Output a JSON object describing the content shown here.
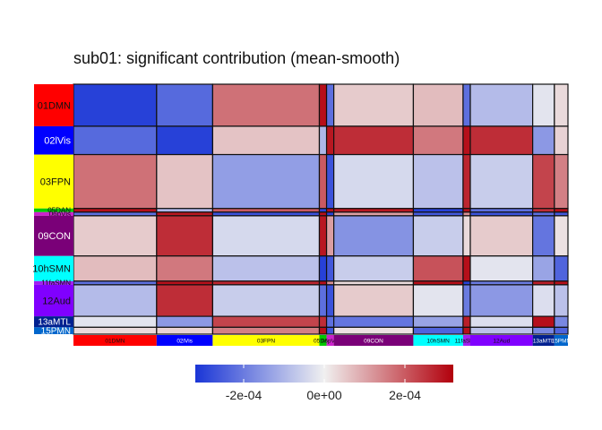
{
  "chart_data": {
    "type": "heatmap",
    "title": "sub01: significant contribution (mean-smooth)",
    "networks": [
      {
        "label": "01DMN",
        "color": "#ff0000",
        "text": "#111111",
        "size": 9.2
      },
      {
        "label": "02lVis",
        "color": "#0000ff",
        "text": "#ffffff",
        "size": 6.2
      },
      {
        "label": "03FPN",
        "color": "#ffff00",
        "text": "#111111",
        "size": 11.8
      },
      {
        "label": "05DAN",
        "color": "#00c800",
        "text": "#111111",
        "size": 0.8
      },
      {
        "label": "06pVis",
        "color": "#cc22cc",
        "text": "#111111",
        "size": 0.8
      },
      {
        "label": "09CON",
        "color": "#7a0078",
        "text": "#ffffff",
        "size": 8.8
      },
      {
        "label": "10hSMN",
        "color": "#00ffff",
        "text": "#111111",
        "size": 5.5
      },
      {
        "label": "11faSMN",
        "color": "#a020f0",
        "text": "#111111",
        "size": 0.8
      },
      {
        "label": "12Aud",
        "color": "#8000ff",
        "text": "#111111",
        "size": 6.9
      },
      {
        "label": "13aMTL",
        "color": "#002090",
        "text": "#ffffff",
        "size": 2.4
      },
      {
        "label": "15PMN",
        "color": "#0066cc",
        "text": "#ffffff",
        "size": 1.5
      }
    ],
    "values": [
      [
        -0.0003,
        -0.00023,
        0.00017,
        0.0003,
        -0.00022,
        5e-05,
        7e-05,
        -0.00022,
        -9e-05,
        -2e-05,
        3e-05
      ],
      [
        -0.00023,
        -0.0003,
        6e-05,
        -0.0001,
        0.00029,
        0.00026,
        0.00016,
        0.0003,
        0.00026,
        -0.00015,
        4e-05
      ],
      [
        0.00017,
        6e-05,
        -0.00014,
        0.0002,
        -0.00027,
        -4e-05,
        -8e-05,
        0.00027,
        -6e-05,
        0.00023,
        0.00015
      ],
      [
        0.0003,
        -0.0001,
        0.0002,
        -0.0003,
        0.0003,
        0.00029,
        -0.0003,
        0.0003,
        -0.00022,
        0.00026,
        0.0003
      ],
      [
        -0.00022,
        0.00029,
        -0.00027,
        0.0003,
        -0.0003,
        0.00011,
        -0.00026,
        0.00013,
        -0.00027,
        -0.00022,
        -0.00026
      ],
      [
        5e-05,
        0.00026,
        -4e-05,
        0.00029,
        0.00011,
        -0.00016,
        -6e-05,
        3e-05,
        5e-05,
        -0.00021,
        2e-05
      ],
      [
        7e-05,
        0.00016,
        -8e-05,
        -0.0003,
        -0.00026,
        -6e-05,
        0.00021,
        0.0003,
        -2e-05,
        -0.00013,
        -0.00024
      ],
      [
        -0.00022,
        0.0003,
        0.00027,
        0.0003,
        0.00013,
        3e-05,
        0.0003,
        -0.0003,
        -0.0002,
        0.00028,
        0.0003
      ],
      [
        -9e-05,
        0.00026,
        -6e-05,
        -0.00022,
        -0.00027,
        5e-05,
        -2e-05,
        -0.0002,
        -0.00015,
        -3e-05,
        -8e-05
      ],
      [
        -2e-05,
        -0.00015,
        0.00023,
        0.00026,
        -0.00022,
        -0.00021,
        -0.00013,
        0.00028,
        -3e-05,
        0.0003,
        -0.00018
      ],
      [
        3e-05,
        4e-05,
        0.00015,
        0.0003,
        -0.00026,
        2e-05,
        -0.00024,
        0.0003,
        -8e-05,
        -0.00018,
        -0.00024
      ]
    ],
    "colorbar": {
      "min": -0.00032,
      "max": 0.00032,
      "ticks": [
        -0.0002,
        0,
        0.0002
      ],
      "tick_labels": [
        "-2e-04",
        "0e+00",
        "2e-04"
      ],
      "colors": {
        "low": "#1a35d6",
        "mid": "#f0f0f0",
        "high": "#b2000c"
      }
    }
  }
}
